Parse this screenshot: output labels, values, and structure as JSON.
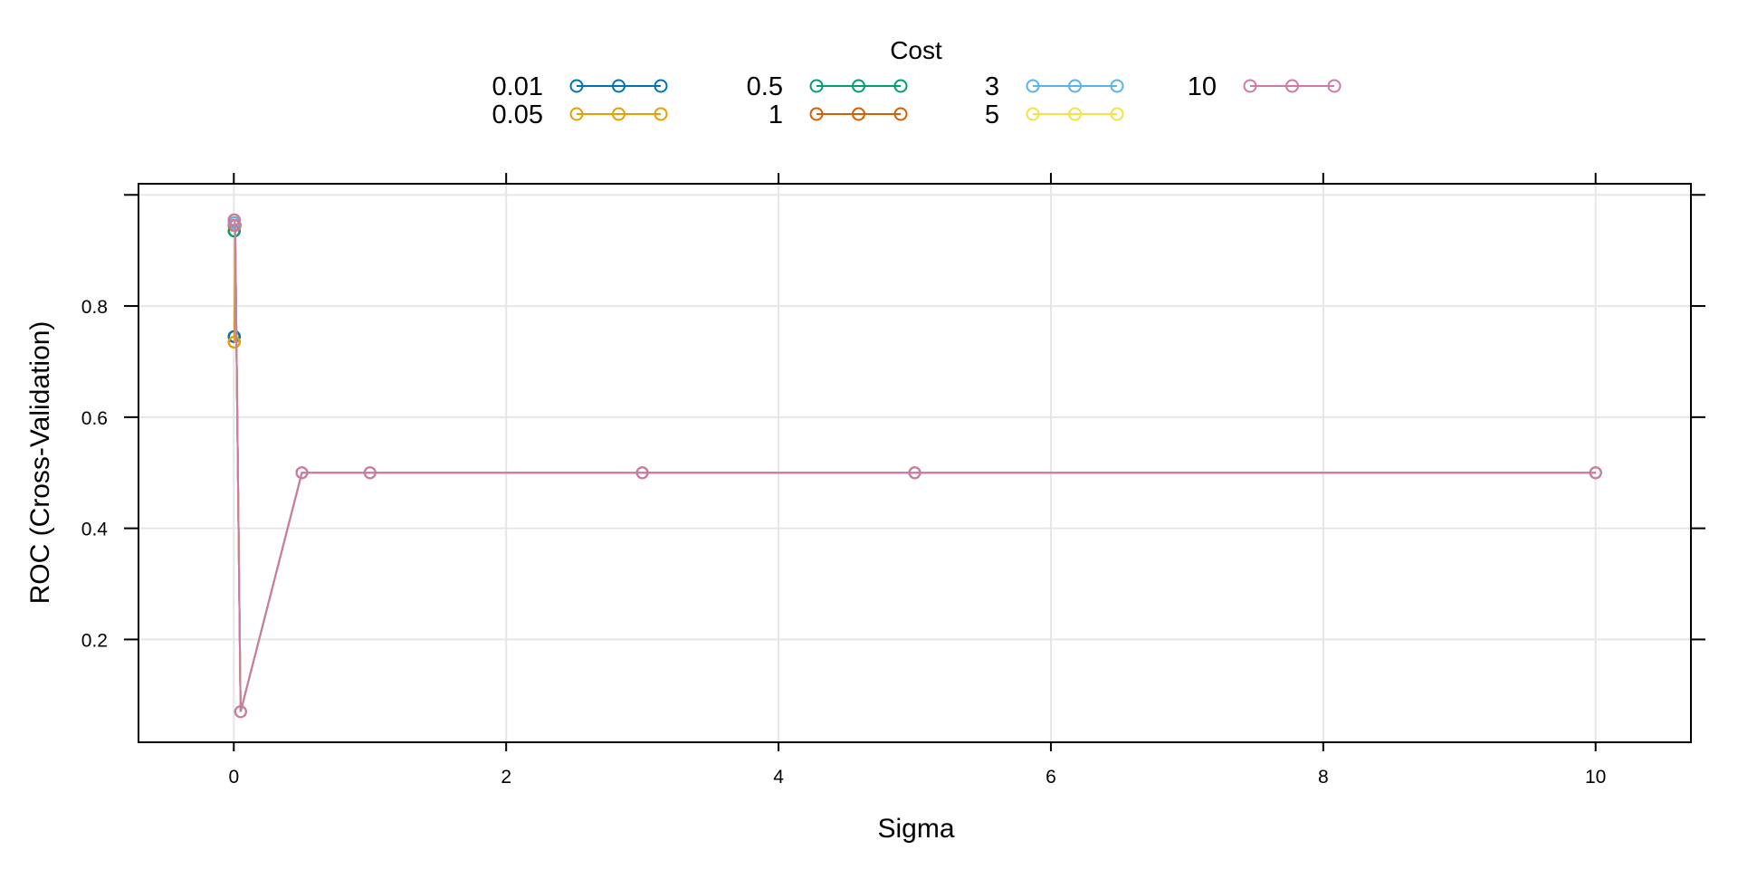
{
  "chart_data": {
    "type": "line",
    "xlabel": "Sigma",
    "ylabel": "ROC (Cross-Validation)",
    "legend_title": "Cost",
    "legend_position": "top",
    "grid": true,
    "xlim": [
      -0.7,
      10.7
    ],
    "ylim": [
      0.015,
      1.02
    ],
    "x_ticks": [
      "0",
      "2",
      "4",
      "6",
      "8",
      "10"
    ],
    "y_ticks": [
      "0.2",
      "0.4",
      "0.6",
      "0.8"
    ],
    "x": [
      0.001,
      0.005,
      0.01,
      0.05,
      0.5,
      1,
      3,
      5,
      10
    ],
    "series": [
      {
        "name": "0.01",
        "color": "#0072B2",
        "values": [
          0.745,
          0.745,
          0.945,
          0.07,
          0.5,
          0.5,
          0.5,
          0.5,
          0.5
        ]
      },
      {
        "name": "0.05",
        "color": "#E69F00",
        "values": [
          0.735,
          0.735,
          0.945,
          0.07,
          0.5,
          0.5,
          0.5,
          0.5,
          0.5
        ]
      },
      {
        "name": "0.5",
        "color": "#009E73",
        "values": [
          0.935,
          0.935,
          0.945,
          0.07,
          0.5,
          0.5,
          0.5,
          0.5,
          0.5
        ]
      },
      {
        "name": "1",
        "color": "#D55E00",
        "values": [
          0.945,
          0.945,
          0.945,
          0.07,
          0.5,
          0.5,
          0.5,
          0.5,
          0.5
        ]
      },
      {
        "name": "3",
        "color": "#56B4E9",
        "values": [
          0.95,
          0.95,
          0.945,
          0.07,
          0.5,
          0.5,
          0.5,
          0.5,
          0.5
        ]
      },
      {
        "name": "5",
        "color": "#F0E442",
        "values": [
          0.955,
          0.955,
          0.945,
          0.07,
          0.5,
          0.5,
          0.5,
          0.5,
          0.5
        ]
      },
      {
        "name": "10",
        "color": "#CC79A7",
        "values": [
          0.955,
          0.955,
          0.945,
          0.07,
          0.5,
          0.5,
          0.5,
          0.5,
          0.5
        ]
      }
    ]
  }
}
